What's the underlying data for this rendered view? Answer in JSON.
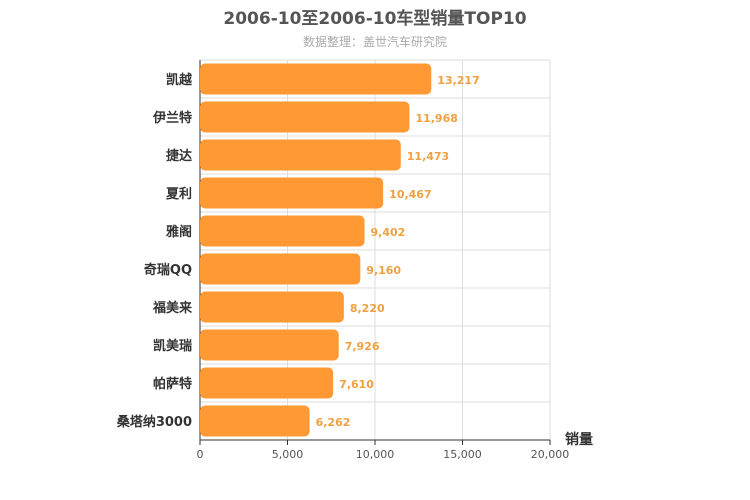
{
  "chart_data": {
    "type": "bar",
    "orientation": "horizontal",
    "title": "2006-10至2006-10车型销量TOP10",
    "subtitle": "数据整理：盖世汽车研究院",
    "xlabel": "销量",
    "categories": [
      "凯越",
      "伊兰特",
      "捷达",
      "夏利",
      "雅阁",
      "奇瑞QQ",
      "福美来",
      "凯美瑞",
      "帕萨特",
      "桑塔纳3000"
    ],
    "values": [
      13217,
      11968,
      11473,
      10467,
      9402,
      9160,
      8220,
      7926,
      7610,
      6262
    ],
    "value_labels": [
      "13,217",
      "11,968",
      "11,473",
      "10,467",
      "9,402",
      "9,160",
      "8,220",
      "7,926",
      "7,610",
      "6,262"
    ],
    "xlim": [
      0,
      20000
    ],
    "xticks": [
      0,
      5000,
      10000,
      15000,
      20000
    ],
    "xtick_labels": [
      "0",
      "5,000",
      "10,000",
      "15,000",
      "20,000"
    ],
    "grid": true,
    "bar_color": "#ff9933"
  }
}
